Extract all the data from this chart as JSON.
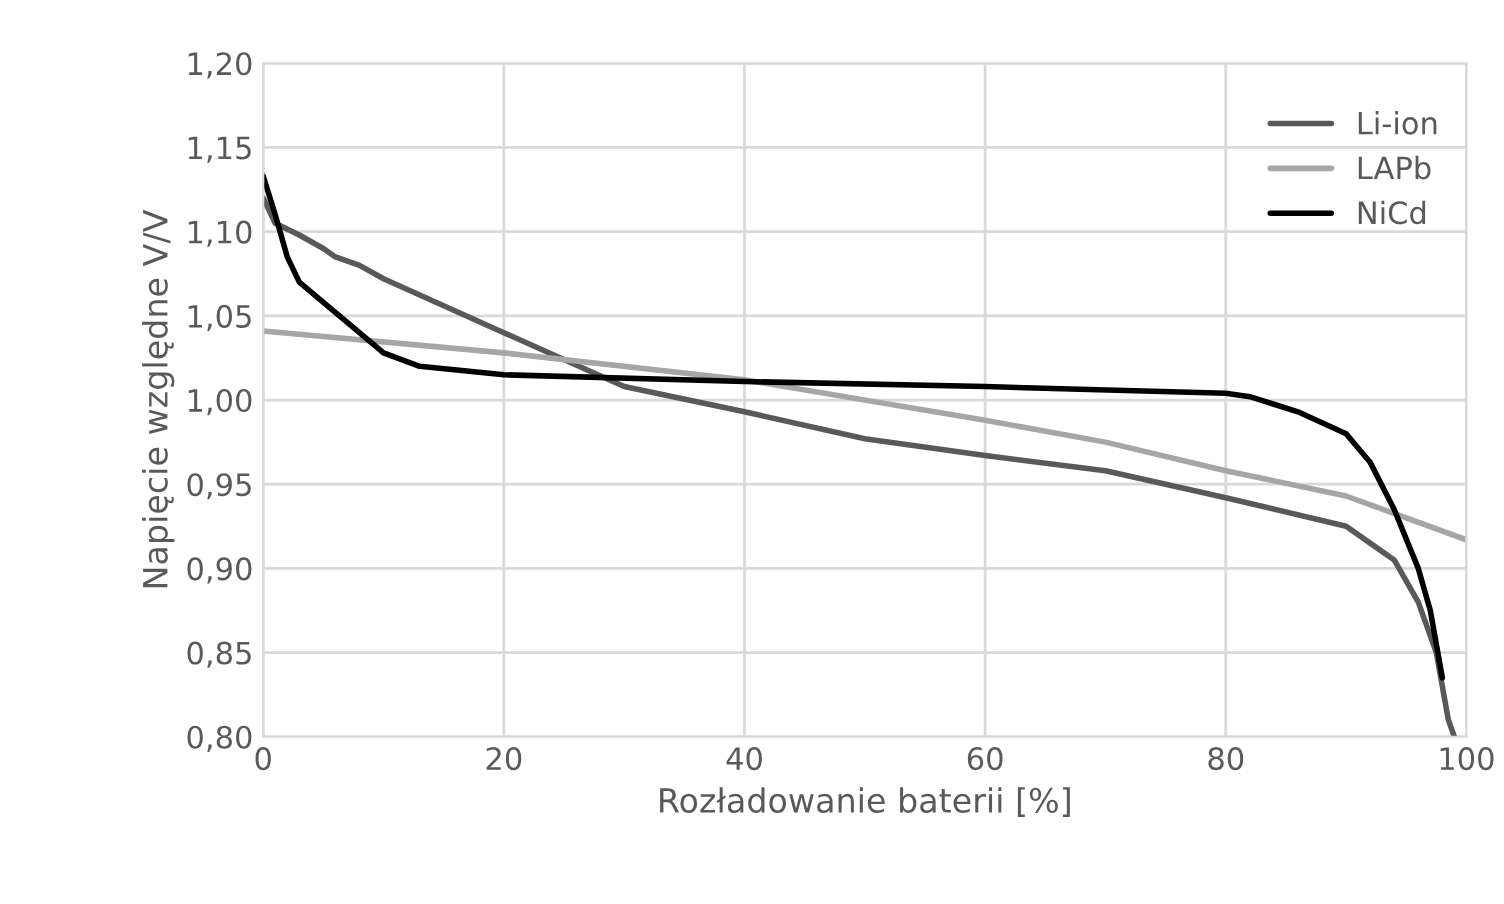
{
  "chart_data": {
    "type": "line",
    "xlabel": "Rozładowanie baterii [%]",
    "ylabel": "Napięcie względne V/V",
    "xlim": [
      0,
      100
    ],
    "xticks": [
      0,
      20,
      40,
      60,
      80,
      100
    ],
    "ylim": [
      0.8,
      1.2
    ],
    "yticks": [
      {
        "value": 0.8,
        "label": "0,80"
      },
      {
        "value": 0.85,
        "label": "0,85"
      },
      {
        "value": 0.9,
        "label": "0,90"
      },
      {
        "value": 0.95,
        "label": "0,95"
      },
      {
        "value": 1.0,
        "label": "1,00"
      },
      {
        "value": 1.05,
        "label": "1,05"
      },
      {
        "value": 1.1,
        "label": "1,10"
      },
      {
        "value": 1.15,
        "label": "1,15"
      },
      {
        "value": 1.2,
        "label": "1,20"
      }
    ],
    "grid": true,
    "legend": "top right",
    "series": [
      {
        "name": "Li-ion",
        "color": "#595959",
        "x": [
          0,
          1,
          3,
          5,
          6,
          8,
          10,
          20,
          30,
          40,
          50,
          60,
          70,
          80,
          90,
          92,
          94,
          96,
          97.5,
          98.5,
          99
        ],
        "values": [
          1.12,
          1.105,
          1.098,
          1.09,
          1.085,
          1.08,
          1.072,
          1.04,
          1.008,
          0.993,
          0.977,
          0.967,
          0.958,
          0.942,
          0.925,
          0.915,
          0.905,
          0.88,
          0.85,
          0.81,
          0.8
        ]
      },
      {
        "name": "LAPb",
        "color": "#a6a6a6",
        "x": [
          0,
          20,
          40,
          60,
          70,
          80,
          90,
          100
        ],
        "values": [
          1.041,
          1.028,
          1.012,
          0.988,
          0.975,
          0.958,
          0.943,
          0.917
        ]
      },
      {
        "name": "NiCd",
        "color": "#000000",
        "x": [
          0,
          1,
          2,
          3,
          5,
          8,
          10,
          13,
          20,
          40,
          60,
          80,
          82,
          86,
          90,
          92,
          94,
          96,
          97,
          98
        ],
        "values": [
          1.133,
          1.11,
          1.085,
          1.07,
          1.058,
          1.04,
          1.028,
          1.02,
          1.015,
          1.011,
          1.008,
          1.004,
          1.002,
          0.993,
          0.98,
          0.963,
          0.935,
          0.9,
          0.875,
          0.835
        ]
      }
    ]
  }
}
